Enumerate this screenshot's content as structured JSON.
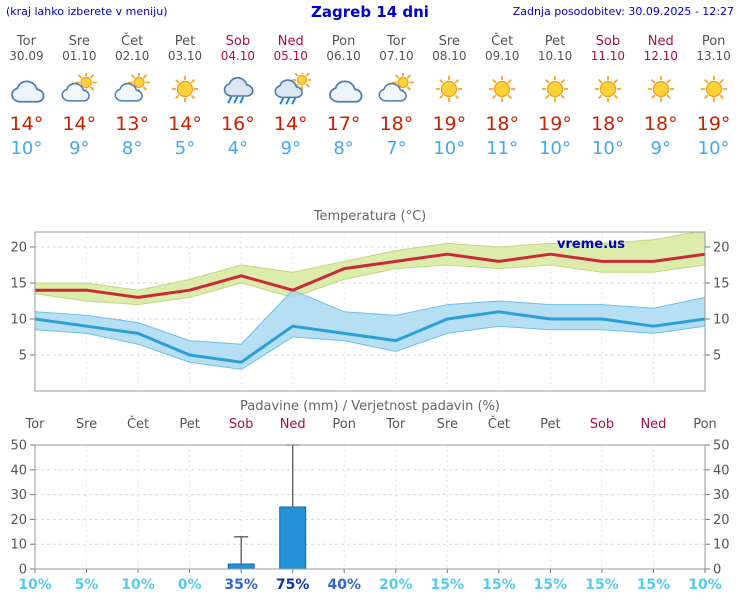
{
  "header": {
    "left_note": "(kraj lahko izberete v meniju)",
    "title": "Zagreb 14 dni",
    "updated": "Zadnja posodobitev: 30.09.2025 - 12:27"
  },
  "days": [
    {
      "name": "Tor",
      "date": "30.09",
      "weekend": false,
      "icon": "cloudy",
      "high": 14,
      "low": 10
    },
    {
      "name": "Sre",
      "date": "01.10",
      "weekend": false,
      "icon": "partly",
      "high": 14,
      "low": 9
    },
    {
      "name": "Čet",
      "date": "02.10",
      "weekend": false,
      "icon": "partly",
      "high": 13,
      "low": 8
    },
    {
      "name": "Pet",
      "date": "03.10",
      "weekend": false,
      "icon": "sunny",
      "high": 14,
      "low": 5
    },
    {
      "name": "Sob",
      "date": "04.10",
      "weekend": true,
      "icon": "rain",
      "high": 16,
      "low": 4
    },
    {
      "name": "Ned",
      "date": "05.10",
      "weekend": true,
      "icon": "sun-rain",
      "high": 14,
      "low": 9
    },
    {
      "name": "Pon",
      "date": "06.10",
      "weekend": false,
      "icon": "cloudy",
      "high": 17,
      "low": 8
    },
    {
      "name": "Tor",
      "date": "07.10",
      "weekend": false,
      "icon": "partly",
      "high": 18,
      "low": 7
    },
    {
      "name": "Sre",
      "date": "08.10",
      "weekend": false,
      "icon": "sunny",
      "high": 19,
      "low": 10
    },
    {
      "name": "Čet",
      "date": "09.10",
      "weekend": false,
      "icon": "sunny",
      "high": 18,
      "low": 11
    },
    {
      "name": "Pet",
      "date": "10.10",
      "weekend": false,
      "icon": "sunny",
      "high": 19,
      "low": 10
    },
    {
      "name": "Sob",
      "date": "11.10",
      "weekend": true,
      "icon": "sunny",
      "high": 18,
      "low": 10
    },
    {
      "name": "Ned",
      "date": "12.10",
      "weekend": true,
      "icon": "sunny",
      "high": 18,
      "low": 9
    },
    {
      "name": "Pon",
      "date": "13.10",
      "weekend": false,
      "icon": "sunny",
      "high": 19,
      "low": 10
    }
  ],
  "chart_data": [
    {
      "type": "line",
      "title": "Temperatura (°C)",
      "watermark": "vreme.us",
      "x_labels": [
        "Tor",
        "Sre",
        "Čet",
        "Pet",
        "Sob",
        "Ned",
        "Pon",
        "Tor",
        "Sre",
        "Čet",
        "Pet",
        "Sob",
        "Ned",
        "Pon"
      ],
      "ylim": [
        0,
        22
      ],
      "yticks": [
        5,
        10,
        15,
        20
      ],
      "grid": true,
      "series": [
        {
          "name": "max-temp",
          "color": "#cc2936",
          "values": [
            14,
            14,
            13,
            14,
            16,
            14,
            17,
            18,
            19,
            18,
            19,
            18,
            18,
            19
          ]
        },
        {
          "name": "min-temp",
          "color": "#2b9fd8",
          "values": [
            10,
            9,
            8,
            5,
            4,
            9,
            8,
            7,
            10,
            11,
            10,
            10,
            9,
            10
          ]
        }
      ],
      "bands": [
        {
          "name": "max-range",
          "color": "#dcecaa",
          "upper": [
            15,
            15,
            14,
            15.5,
            17.5,
            16.5,
            18,
            19.5,
            20.5,
            20,
            20.5,
            20.5,
            21,
            22.3
          ],
          "lower": [
            13.5,
            12.5,
            12,
            13,
            15,
            13,
            15.5,
            17,
            17.5,
            17,
            17.5,
            16.5,
            16.5,
            17.5
          ]
        },
        {
          "name": "min-range",
          "color": "#a6d8f2",
          "upper": [
            11,
            10.5,
            9.5,
            7,
            6.5,
            14,
            11,
            10.5,
            12,
            12.5,
            12,
            12,
            11.5,
            13
          ],
          "lower": [
            8.5,
            8,
            6.5,
            4,
            3,
            7.5,
            7,
            5.5,
            8,
            9,
            8.5,
            8.5,
            8,
            9
          ]
        }
      ]
    },
    {
      "type": "bar",
      "title": "Padavine (mm) / Verjetnost padavin (%)",
      "x_labels": [
        "Tor",
        "Sre",
        "Čet",
        "Pet",
        "Sob",
        "Ned",
        "Pon",
        "Tor",
        "Sre",
        "Čet",
        "Pet",
        "Sob",
        "Ned",
        "Pon"
      ],
      "ylim": [
        0,
        52
      ],
      "yticks": [
        0,
        10,
        20,
        30,
        40,
        50
      ],
      "grid": true,
      "precip_mm": [
        0,
        0,
        0,
        0,
        2,
        25,
        0,
        0,
        0,
        0,
        0,
        0,
        0,
        0
      ],
      "precip_max_mm": [
        0,
        0,
        0,
        0,
        13,
        50,
        0,
        0,
        0,
        0,
        0,
        0,
        0,
        0
      ],
      "probability_pct": [
        10,
        5,
        10,
        0,
        35,
        75,
        40,
        20,
        15,
        15,
        15,
        15,
        15,
        10
      ]
    }
  ],
  "colors": {
    "link_blue": "#0000cc",
    "weekday": "#555555",
    "weekend": "#aa1144",
    "temp_high": "#cc2200",
    "temp_low": "#44aaee",
    "grid": "#d8d8d8",
    "frame": "#999999",
    "axis_text": "#555555",
    "max_band_edge": "#c2d87e",
    "min_band_edge": "#6fc0e8",
    "bar_fill": "#2492d8",
    "bar_edge": "#1668a8",
    "whisker": "#555555",
    "prob_low": "#55ccee",
    "prob_mid": "#3366cc",
    "prob_high": "#1133aa",
    "watermark": "#0000bb"
  }
}
